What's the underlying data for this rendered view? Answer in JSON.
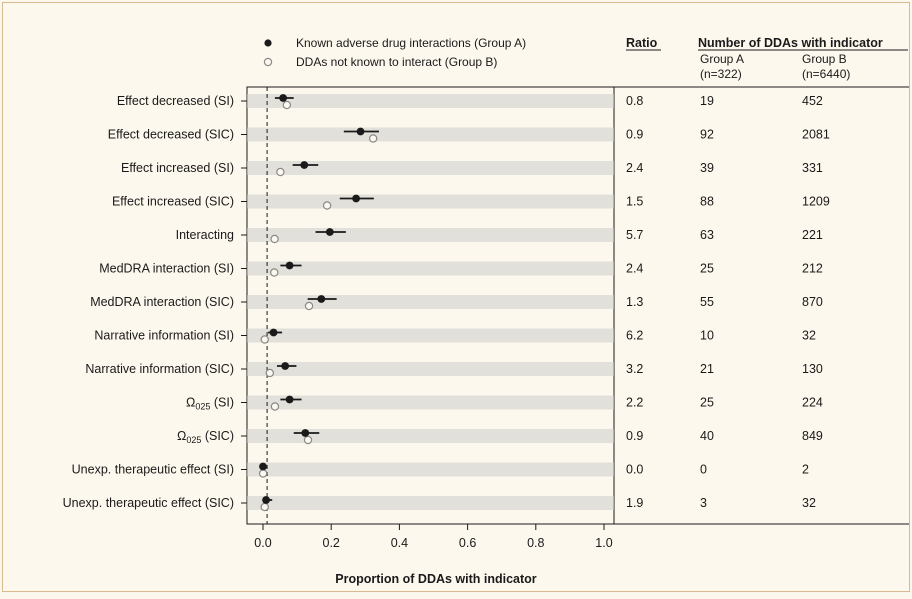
{
  "chart_data": {
    "type": "dot-plot",
    "xlabel": "Proportion of DDAs with indicator",
    "xlim": [
      0,
      1
    ],
    "xticks": [
      "0.0",
      "0.2",
      "0.4",
      "0.6",
      "0.8",
      "1.0"
    ],
    "reference_line_x": 0.012,
    "legend": {
      "placement": "top",
      "series_a": "Known adverse drug interactions (Group A)",
      "series_b": "DDAs not known to interact (Group B)"
    },
    "colors": {
      "group_a": "#1a1a1a",
      "group_b": "#8a8a8a",
      "row_band": "#cccccc"
    },
    "table": {
      "ratio_header": "Ratio",
      "count_header": "Number of DDAs with indicator",
      "group_a_header": "Group A",
      "group_a_n": "(n=322)",
      "group_b_header": "Group B",
      "group_b_n": "(n=6440)"
    },
    "rows": [
      {
        "label": "Effect decreased (SI)",
        "a": 0.059,
        "a_ci": [
          0.035,
          0.09
        ],
        "b": 0.07,
        "ratio": "0.8",
        "count_a": "19",
        "count_b": "452"
      },
      {
        "label": "Effect decreased (SIC)",
        "a": 0.286,
        "a_ci": [
          0.237,
          0.34
        ],
        "b": 0.323,
        "b_ci": [
          0.312,
          0.335
        ],
        "ratio": "0.9",
        "count_a": "92",
        "count_b": "2081"
      },
      {
        "label": "Effect increased (SI)",
        "a": 0.121,
        "a_ci": [
          0.087,
          0.162
        ],
        "b": 0.051,
        "b_ci": [
          0.046,
          0.057
        ],
        "ratio": "2.4",
        "count_a": "39",
        "count_b": "331"
      },
      {
        "label": "Effect increased (SIC)",
        "a": 0.273,
        "a_ci": [
          0.225,
          0.325
        ],
        "b": 0.188,
        "b_ci": [
          0.178,
          0.198
        ],
        "ratio": "1.5",
        "count_a": "88",
        "count_b": "1209"
      },
      {
        "label": "Interacting",
        "a": 0.196,
        "a_ci": [
          0.154,
          0.243
        ],
        "b": 0.034,
        "b_ci": [
          0.03,
          0.039
        ],
        "ratio": "5.7",
        "count_a": "63",
        "count_b": "221"
      },
      {
        "label": "MedDRA interaction (SI)",
        "a": 0.078,
        "a_ci": [
          0.051,
          0.113
        ],
        "b": 0.033,
        "b_ci": [
          0.029,
          0.038
        ],
        "ratio": "2.4",
        "count_a": "25",
        "count_b": "212"
      },
      {
        "label": "MedDRA interaction (SIC)",
        "a": 0.171,
        "a_ci": [
          0.131,
          0.216
        ],
        "b": 0.135,
        "b_ci": [
          0.127,
          0.144
        ],
        "ratio": "1.3",
        "count_a": "55",
        "count_b": "870"
      },
      {
        "label": "Narrative information (SI)",
        "a": 0.031,
        "a_ci": [
          0.015,
          0.056
        ],
        "b": 0.005,
        "b_ci": [
          0.003,
          0.007
        ],
        "ratio": "6.2",
        "count_a": "10",
        "count_b": "32"
      },
      {
        "label": "Narrative information (SIC)",
        "a": 0.065,
        "a_ci": [
          0.041,
          0.098
        ],
        "b": 0.02,
        "b_ci": [
          0.017,
          0.024
        ],
        "ratio": "3.2",
        "count_a": "21",
        "count_b": "130"
      },
      {
        "label_main": "Ω",
        "label_sub": "025",
        "label_tail": " (SI)",
        "a": 0.078,
        "a_ci": [
          0.051,
          0.113
        ],
        "b": 0.035,
        "b_ci": [
          0.031,
          0.04
        ],
        "ratio": "2.2",
        "count_a": "25",
        "count_b": "224"
      },
      {
        "label_main": "Ω",
        "label_sub": "025",
        "label_tail": " (SIC)",
        "a": 0.124,
        "a_ci": [
          0.09,
          0.165
        ],
        "b": 0.132,
        "b_ci": [
          0.124,
          0.14
        ],
        "ratio": "0.9",
        "count_a": "40",
        "count_b": "849"
      },
      {
        "label": "Unexp. therapeutic effect (SI)",
        "a": 0.0,
        "a_ci": [
          0.0,
          0.011
        ],
        "b": 0.0003,
        "ratio": "0.0",
        "count_a": "0",
        "count_b": "2"
      },
      {
        "label": "Unexp. therapeutic effect (SIC)",
        "a": 0.009,
        "a_ci": [
          0.002,
          0.027
        ],
        "b": 0.005,
        "b_ci": [
          0.003,
          0.007
        ],
        "ratio": "1.9",
        "count_a": "3",
        "count_b": "32"
      }
    ]
  }
}
